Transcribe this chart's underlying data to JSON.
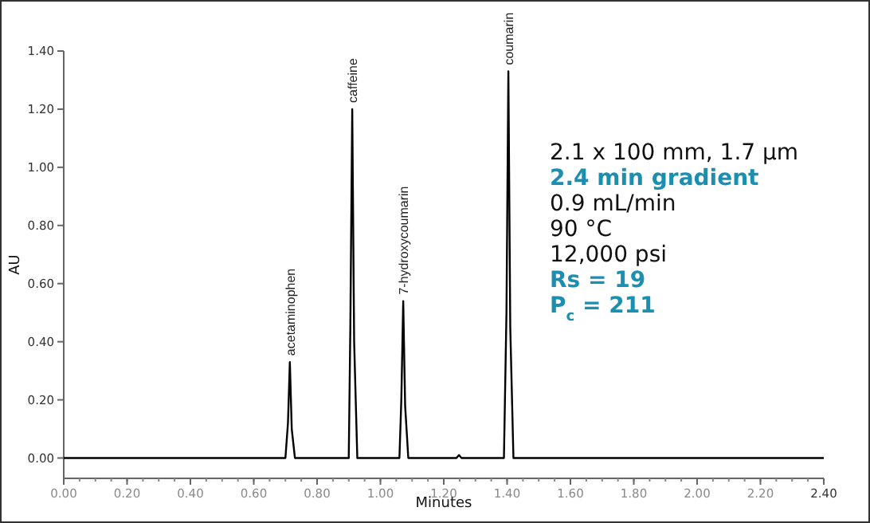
{
  "chart_data": {
    "type": "line",
    "xlabel": "Minutes",
    "ylabel": "AU",
    "xlim": [
      0,
      2.4
    ],
    "ylim": [
      -0.07,
      1.4
    ],
    "xticks": [
      {
        "value": 0,
        "label": "0.00"
      },
      {
        "value": 0.2,
        "label": "0.20"
      },
      {
        "value": 0.4,
        "label": "0.40"
      },
      {
        "value": 0.6,
        "label": "0.60"
      },
      {
        "value": 0.8,
        "label": "0.80"
      },
      {
        "value": 1.0,
        "label": "1.00"
      },
      {
        "value": 1.2,
        "label": "1.20"
      },
      {
        "value": 1.4,
        "label": "1.40"
      },
      {
        "value": 1.6,
        "label": "1.60"
      },
      {
        "value": 1.8,
        "label": "1.80"
      },
      {
        "value": 2.0,
        "label": "2.00"
      },
      {
        "value": 2.2,
        "label": "2.20"
      },
      {
        "value": 2.4,
        "label": "2.40"
      }
    ],
    "yticks": [
      {
        "value": 0,
        "label": "0.00"
      },
      {
        "value": 0.2,
        "label": "0.20"
      },
      {
        "value": 0.4,
        "label": "0.40"
      },
      {
        "value": 0.6,
        "label": "0.60"
      },
      {
        "value": 0.8,
        "label": "0.80"
      },
      {
        "value": 1.0,
        "label": "1.00"
      },
      {
        "value": 1.2,
        "label": "1.20"
      },
      {
        "value": 1.4,
        "label": "1.40"
      }
    ],
    "grid": false,
    "marker": "none",
    "line_style": "solid",
    "series": [
      {
        "color": "#000000",
        "x": [
          0,
          0.7,
          0.708,
          0.714,
          0.72,
          0.73,
          0.9,
          0.905,
          0.911,
          0.917,
          0.927,
          1.06,
          1.066,
          1.072,
          1.078,
          1.088,
          1.24,
          1.248,
          1.256,
          1.39,
          1.398,
          1.404,
          1.41,
          1.42,
          2.4
        ],
        "values": [
          0,
          0,
          0.12,
          0.33,
          0.1,
          0,
          0,
          0.45,
          1.2,
          0.4,
          0,
          0,
          0.2,
          0.54,
          0.18,
          0,
          0,
          0.01,
          0,
          0,
          0.5,
          1.33,
          0.45,
          0,
          0
        ]
      }
    ],
    "annotations": [
      {
        "text": "acetaminophen",
        "x": 0.714,
        "y": 0.33
      },
      {
        "text": "caffeine",
        "x": 0.911,
        "y": 1.2
      },
      {
        "text": "7-hydroxycoumarin",
        "x": 1.072,
        "y": 0.54
      },
      {
        "text": "coumarin",
        "x": 1.404,
        "y": 1.33
      },
      "2.1 x 100 mm, 1.7 µm",
      "2.4 min gradient",
      "0.9 mL/min",
      "90 °C",
      "12,000 psi",
      "Rs = 19",
      "P$_{c}$ = 211"
    ]
  }
}
